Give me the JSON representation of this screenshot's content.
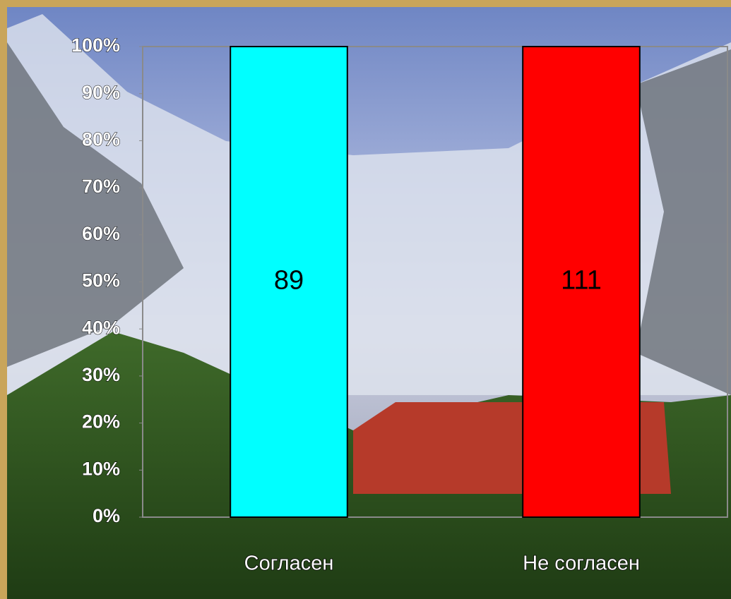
{
  "chart_data": {
    "type": "bar100",
    "categories": [
      "Согласен",
      "Не согласен"
    ],
    "series": [
      {
        "values": [
          89,
          111
        ],
        "colors": [
          "#00ffff",
          "#ff0000"
        ]
      }
    ],
    "ylim": [
      0,
      100
    ],
    "yticks": [
      {
        "value": 0,
        "label": "0%"
      },
      {
        "value": 10,
        "label": "10%"
      },
      {
        "value": 20,
        "label": "20%"
      },
      {
        "value": 30,
        "label": "30%"
      },
      {
        "value": 40,
        "label": "40%"
      },
      {
        "value": 50,
        "label": "50%"
      },
      {
        "value": 60,
        "label": "60%"
      },
      {
        "value": 70,
        "label": "70%"
      },
      {
        "value": 80,
        "label": "80%"
      },
      {
        "value": 90,
        "label": "90%"
      },
      {
        "value": 100,
        "label": "100%"
      }
    ],
    "data_labels": true
  }
}
